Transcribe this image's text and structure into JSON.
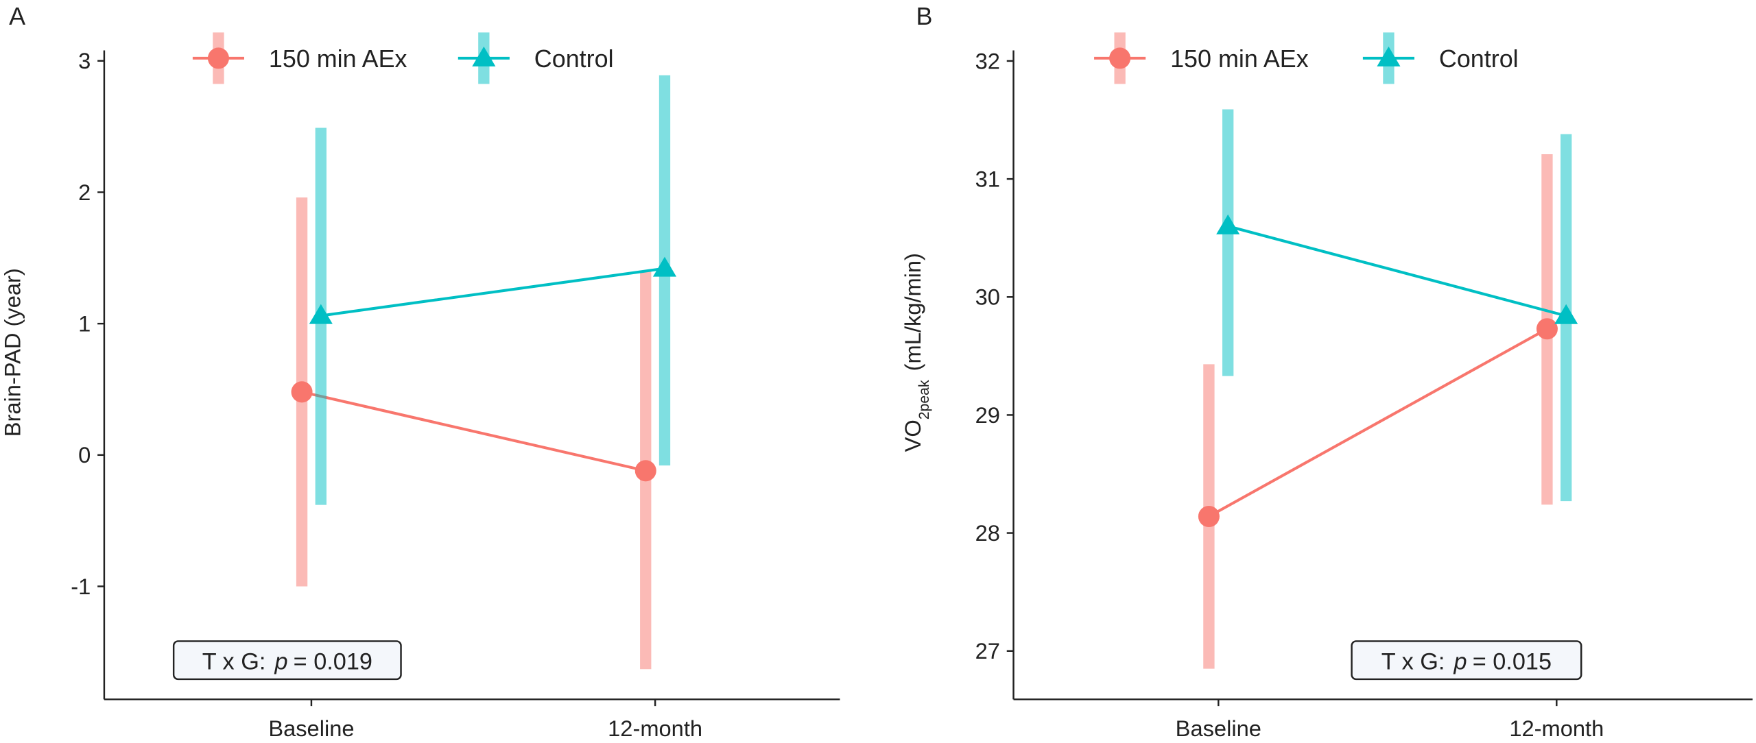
{
  "chart_data": [
    {
      "type": "line",
      "panel_label": "A",
      "y_label": [
        "Brain-PAD (year)"
      ],
      "categories": [
        "Baseline",
        "12-month"
      ],
      "series": [
        {
          "name": "150 min AEx",
          "color": "#f8766d",
          "marker": "circle",
          "values": [
            0.48,
            -0.12
          ],
          "lower": [
            -1.0,
            -1.63
          ],
          "upper": [
            1.96,
            1.4
          ]
        },
        {
          "name": "Control",
          "color": "#00bfc4",
          "marker": "triangle",
          "values": [
            1.06,
            1.42
          ],
          "lower": [
            -0.38,
            -0.08
          ],
          "upper": [
            2.49,
            2.89
          ]
        }
      ],
      "ylim": [
        -1.86,
        3.08
      ],
      "yticks": [
        -1,
        0,
        1,
        2,
        3
      ],
      "annotation": [
        "T x G:",
        "p",
        "= 0.019"
      ]
    },
    {
      "type": "line",
      "panel_label": "B",
      "y_label": [
        "VO",
        "2peak",
        "(mL/kg/min)"
      ],
      "categories": [
        "Baseline",
        "12-month"
      ],
      "series": [
        {
          "name": "150 min AEx",
          "color": "#f8766d",
          "marker": "circle",
          "values": [
            28.14,
            29.73
          ],
          "lower": [
            26.85,
            28.24
          ],
          "upper": [
            29.43,
            31.21
          ]
        },
        {
          "name": "Control",
          "color": "#00bfc4",
          "marker": "triangle",
          "values": [
            30.6,
            29.84
          ],
          "lower": [
            29.33,
            28.27
          ],
          "upper": [
            31.59,
            31.38
          ]
        }
      ],
      "ylim": [
        26.59,
        32.09
      ],
      "yticks": [
        27,
        28,
        29,
        30,
        31,
        32
      ],
      "annotation": [
        "T x G:",
        "p",
        "= 0.015"
      ]
    }
  ]
}
